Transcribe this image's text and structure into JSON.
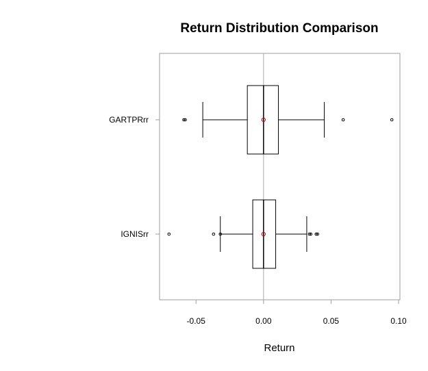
{
  "chart_data": {
    "type": "boxplot",
    "orientation": "horizontal",
    "title": "Return Distribution Comparison",
    "xlabel": "Return",
    "ylabel": "",
    "xlim": [
      -0.077,
      0.101
    ],
    "x_ticks": [
      -0.05,
      0.0,
      0.05,
      0.1
    ],
    "x_tick_labels": [
      "-0.05",
      "0.00",
      "0.05",
      "0.10"
    ],
    "reference_line_x": 0.0,
    "grid": false,
    "colors": {
      "box": "#000000",
      "frame": "#9e9e9e",
      "reference_line": "#a8a8a8",
      "mean_marker": "#c00000"
    },
    "series": [
      {
        "name": "GARTPRrr",
        "whisker_low": -0.045,
        "q1": -0.012,
        "median": 0.0,
        "q3": 0.011,
        "whisker_high": 0.045,
        "mean": 0.0,
        "outliers": [
          -0.059,
          -0.058,
          0.059,
          0.095
        ]
      },
      {
        "name": "IGNISrr",
        "whisker_low": -0.032,
        "q1": -0.008,
        "median": 0.0,
        "q3": 0.009,
        "whisker_high": 0.032,
        "mean": 0.0,
        "outliers": [
          -0.07,
          -0.037,
          -0.032,
          0.034,
          0.035,
          0.039,
          0.04
        ]
      }
    ]
  }
}
